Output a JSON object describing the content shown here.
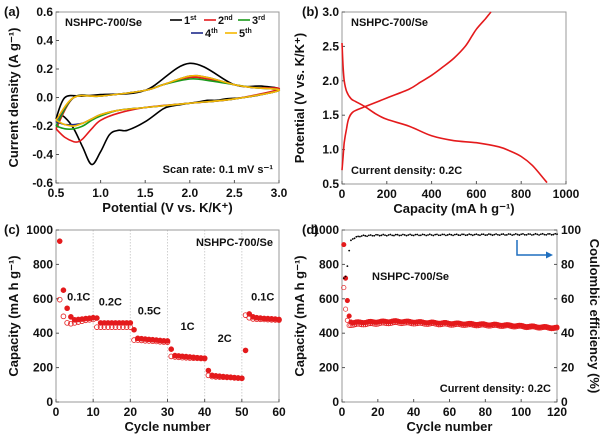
{
  "chart_data": [
    {
      "panel": "(a)",
      "type": "line",
      "annotation": "NSHPC-700/Se",
      "note": "Scan rate: 0.1 mV s⁻¹",
      "xlabel": "Potential (V vs. K/K⁺)",
      "ylabel": "Current density (A g⁻¹)",
      "xlim": [
        0.5,
        3.0
      ],
      "ylim": [
        -0.6,
        0.6
      ],
      "xticks": [
        "0.5",
        "1.0",
        "1.5",
        "2.0",
        "2.5",
        "3.0"
      ],
      "yticks": [
        "-0.6",
        "-0.4",
        "-0.2",
        "0.0",
        "0.2",
        "0.4",
        "0.6"
      ],
      "legend_position": "top-right",
      "series": [
        {
          "name": "1st",
          "label_main": "1",
          "label_sup": "st",
          "color": "#000000",
          "x": [
            0.5,
            0.55,
            0.6,
            0.7,
            0.8,
            0.9,
            1.0,
            1.1,
            1.2,
            1.3,
            1.5,
            1.7,
            1.8,
            1.9,
            2.0,
            2.1,
            2.2,
            2.3,
            2.4,
            2.6,
            2.8,
            3.0,
            2.8,
            2.5,
            2.0,
            1.5,
            1.0,
            0.8,
            0.6,
            0.5
          ],
          "y": [
            -0.15,
            -0.13,
            -0.14,
            -0.22,
            -0.35,
            -0.47,
            -0.38,
            -0.26,
            -0.23,
            -0.23,
            -0.17,
            -0.08,
            -0.06,
            -0.05,
            -0.04,
            -0.03,
            -0.02,
            -0.02,
            -0.01,
            0.0,
            0.02,
            0.06,
            0.08,
            0.09,
            0.24,
            0.05,
            0.02,
            0.01,
            0.0,
            -0.15
          ]
        },
        {
          "name": "2nd",
          "label_main": "2",
          "label_sup": "nd",
          "color": "#e41a1c",
          "x": [
            0.5,
            0.6,
            0.7,
            0.75,
            0.8,
            0.9,
            1.0,
            1.2,
            1.5,
            2.0,
            2.5,
            3.0,
            2.7,
            2.5,
            2.2,
            2.0,
            1.7,
            1.5,
            1.0,
            0.7,
            0.5
          ],
          "y": [
            -0.22,
            -0.28,
            -0.31,
            -0.31,
            -0.29,
            -0.22,
            -0.16,
            -0.11,
            -0.07,
            -0.04,
            -0.01,
            0.06,
            0.07,
            0.09,
            0.13,
            0.14,
            0.09,
            0.05,
            0.01,
            0.0,
            -0.22
          ]
        },
        {
          "name": "3rd",
          "label_main": "3",
          "label_sup": "rd",
          "color": "#1a9a1a",
          "x": [
            0.5,
            0.6,
            0.7,
            0.8,
            0.9,
            1.0,
            1.2,
            1.5,
            2.0,
            2.5,
            3.0,
            2.7,
            2.5,
            2.2,
            2.0,
            1.7,
            1.5,
            1.0,
            0.7,
            0.5
          ],
          "y": [
            -0.2,
            -0.22,
            -0.22,
            -0.2,
            -0.16,
            -0.13,
            -0.09,
            -0.07,
            -0.04,
            -0.01,
            0.05,
            0.07,
            0.09,
            0.12,
            0.13,
            0.09,
            0.05,
            0.01,
            0.0,
            -0.2
          ]
        },
        {
          "name": "4th",
          "label_main": "4",
          "label_sup": "th",
          "color": "#1f2a8a",
          "x": [
            0.5,
            0.6,
            0.7,
            0.8,
            0.9,
            1.0,
            1.2,
            1.5,
            2.0,
            2.5,
            3.0,
            2.7,
            2.5,
            2.2,
            2.0,
            1.7,
            1.5,
            1.0,
            0.7,
            0.5
          ],
          "y": [
            -0.17,
            -0.19,
            -0.19,
            -0.18,
            -0.15,
            -0.12,
            -0.09,
            -0.07,
            -0.04,
            -0.01,
            0.05,
            0.07,
            0.09,
            0.14,
            0.15,
            0.09,
            0.05,
            0.01,
            0.0,
            -0.17
          ]
        },
        {
          "name": "5th",
          "label_main": "5",
          "label_sup": "th",
          "color": "#f5b800",
          "x": [
            0.5,
            0.6,
            0.7,
            0.8,
            0.9,
            1.0,
            1.2,
            1.5,
            2.0,
            2.5,
            3.0,
            2.7,
            2.5,
            2.2,
            2.0,
            1.7,
            1.5,
            1.0,
            0.7,
            0.5
          ],
          "y": [
            -0.16,
            -0.19,
            -0.2,
            -0.18,
            -0.15,
            -0.12,
            -0.09,
            -0.07,
            -0.04,
            -0.01,
            0.05,
            0.07,
            0.09,
            0.14,
            0.15,
            0.09,
            0.05,
            0.01,
            0.0,
            -0.16
          ]
        }
      ]
    },
    {
      "panel": "(b)",
      "type": "line",
      "annotation": "NSHPC-700/Se",
      "note": "Current density: 0.2C",
      "xlabel": "Capacity (mA h g⁻¹)",
      "ylabel": "Potential (V vs. K/K⁺)",
      "xlim": [
        0,
        1000
      ],
      "ylim": [
        0.5,
        3.0
      ],
      "xticks": [
        "0",
        "200",
        "400",
        "600",
        "800",
        "1000"
      ],
      "yticks": [
        "0.5",
        "1.0",
        "1.5",
        "2.0",
        "2.5",
        "3.0"
      ],
      "series": [
        {
          "name": "discharge",
          "color": "#e41a1c",
          "x": [
            0,
            5,
            10,
            20,
            40,
            60,
            100,
            150,
            200,
            300,
            400,
            500,
            600,
            700,
            750,
            800,
            850,
            900,
            915
          ],
          "y": [
            2.55,
            2.2,
            2.0,
            1.85,
            1.74,
            1.7,
            1.63,
            1.52,
            1.44,
            1.34,
            1.2,
            1.13,
            1.1,
            1.04,
            0.98,
            0.9,
            0.77,
            0.58,
            0.52
          ]
        },
        {
          "name": "charge",
          "color": "#e41a1c",
          "x": [
            0,
            5,
            10,
            20,
            30,
            50,
            100,
            200,
            300,
            350,
            400,
            450,
            500,
            550,
            580,
            600,
            640,
            665
          ],
          "y": [
            0.7,
            0.9,
            1.1,
            1.3,
            1.45,
            1.55,
            1.62,
            1.75,
            1.88,
            1.98,
            2.08,
            2.2,
            2.33,
            2.5,
            2.65,
            2.75,
            2.9,
            3.0
          ]
        }
      ]
    },
    {
      "panel": "(c)",
      "type": "scatter",
      "annotation": "NSHPC-700/Se",
      "xlabel": "Cycle number",
      "ylabel": "Capacity (mA h g⁻¹)",
      "xlim": [
        0,
        60
      ],
      "ylim": [
        0,
        1000
      ],
      "xticks": [
        "0",
        "10",
        "20",
        "30",
        "40",
        "50",
        "60"
      ],
      "yticks": [
        "0",
        "200",
        "400",
        "600",
        "800",
        "1000"
      ],
      "rate_labels": [
        {
          "text": "0.1C",
          "x": 3,
          "y": 590
        },
        {
          "text": "0.2C",
          "x": 11.5,
          "y": 560
        },
        {
          "text": "0.5C",
          "x": 22,
          "y": 510
        },
        {
          "text": "1C",
          "x": 33.5,
          "y": 420
        },
        {
          "text": "2C",
          "x": 43.5,
          "y": 350
        },
        {
          "text": "0.1C",
          "x": 52.5,
          "y": 590
        }
      ],
      "series": [
        {
          "name": "discharge",
          "marker": "filled-circle",
          "color": "#e41a1c",
          "x": [
            1,
            2,
            3,
            4,
            5,
            6,
            7,
            8,
            9,
            10,
            11,
            12,
            13,
            14,
            15,
            16,
            17,
            18,
            19,
            20,
            21,
            22,
            23,
            24,
            25,
            26,
            27,
            28,
            29,
            30,
            31,
            32,
            33,
            34,
            35,
            36,
            37,
            38,
            39,
            40,
            41,
            42,
            43,
            44,
            45,
            46,
            47,
            48,
            49,
            50,
            51,
            52,
            53,
            54,
            55,
            56,
            57,
            58,
            59,
            60
          ],
          "y": [
            935,
            650,
            545,
            495,
            478,
            480,
            482,
            485,
            487,
            490,
            488,
            460,
            460,
            460,
            460,
            460,
            460,
            460,
            460,
            460,
            420,
            370,
            368,
            366,
            364,
            362,
            360,
            358,
            356,
            355,
            307,
            270,
            268,
            266,
            264,
            262,
            260,
            258,
            256,
            255,
            183,
            155,
            152,
            150,
            148,
            146,
            144,
            142,
            140,
            138,
            300,
            512,
            495,
            490,
            488,
            486,
            485,
            484,
            482,
            480
          ]
        },
        {
          "name": "charge",
          "marker": "open-circle",
          "color": "#e41a1c",
          "x": [
            1,
            2,
            3,
            4,
            5,
            6,
            7,
            8,
            9,
            10,
            11,
            12,
            13,
            14,
            15,
            16,
            17,
            18,
            19,
            20,
            21,
            22,
            23,
            24,
            25,
            26,
            27,
            28,
            29,
            30,
            31,
            32,
            33,
            34,
            35,
            36,
            37,
            38,
            39,
            40,
            41,
            42,
            43,
            44,
            45,
            46,
            47,
            48,
            49,
            50,
            51,
            52,
            53,
            54,
            55,
            56,
            57,
            58,
            59,
            60
          ],
          "y": [
            595,
            498,
            460,
            455,
            460,
            465,
            470,
            475,
            478,
            480,
            435,
            435,
            435,
            435,
            435,
            435,
            435,
            435,
            435,
            435,
            360,
            360,
            358,
            356,
            355,
            354,
            352,
            350,
            349,
            348,
            265,
            262,
            260,
            258,
            257,
            256,
            255,
            254,
            253,
            252,
            155,
            148,
            146,
            145,
            144,
            143,
            142,
            140,
            139,
            138,
            505,
            490,
            483,
            482,
            481,
            480,
            479,
            478,
            477,
            476
          ]
        }
      ]
    },
    {
      "panel": "(d)",
      "type": "scatter",
      "annotation": "NSHPC-700/Se",
      "note": "Current density: 0.2C",
      "xlabel": "Cycle number",
      "ylabel": "Capacity (mA h g⁻¹)",
      "y2label": "Coulombic efficiency (%)",
      "xlim": [
        0,
        120
      ],
      "ylim": [
        0,
        1000
      ],
      "y2lim": [
        0,
        100
      ],
      "xticks": [
        "0",
        "20",
        "40",
        "60",
        "80",
        "100",
        "120"
      ],
      "yticks": [
        "0",
        "200",
        "400",
        "600",
        "800",
        "1000"
      ],
      "y2ticks": [
        "0",
        "20",
        "40",
        "60",
        "80",
        "100"
      ],
      "series": [
        {
          "name": "discharge",
          "marker": "filled-circle",
          "color": "#e41a1c",
          "x_start": 1,
          "first_values": [
            915,
            720,
            590,
            500,
            465
          ],
          "trend": [
            [
              5,
              462
            ],
            [
              30,
              470
            ],
            [
              60,
              458
            ],
            [
              90,
              448
            ],
            [
              120,
              432
            ]
          ]
        },
        {
          "name": "charge",
          "marker": "open-circle",
          "color": "#e41a1c",
          "x_start": 1,
          "first_values": [
            665,
            540,
            475,
            445,
            445
          ],
          "trend": [
            [
              5,
              448
            ],
            [
              30,
              460
            ],
            [
              60,
              450
            ],
            [
              90,
              442
            ],
            [
              120,
              428
            ]
          ]
        },
        {
          "name": "coulombic efficiency",
          "axis": "right",
          "marker": "small-dot",
          "color": "#000000",
          "x_start": 1,
          "first_values": [
            72,
            73,
            79,
            88,
            94
          ],
          "trend": [
            [
              6,
              95
            ],
            [
              10,
              96.5
            ],
            [
              20,
              97
            ],
            [
              120,
              97.5
            ]
          ]
        }
      ],
      "arrow": {
        "direction": "right-axis",
        "color": "#1f6fbf"
      }
    }
  ]
}
